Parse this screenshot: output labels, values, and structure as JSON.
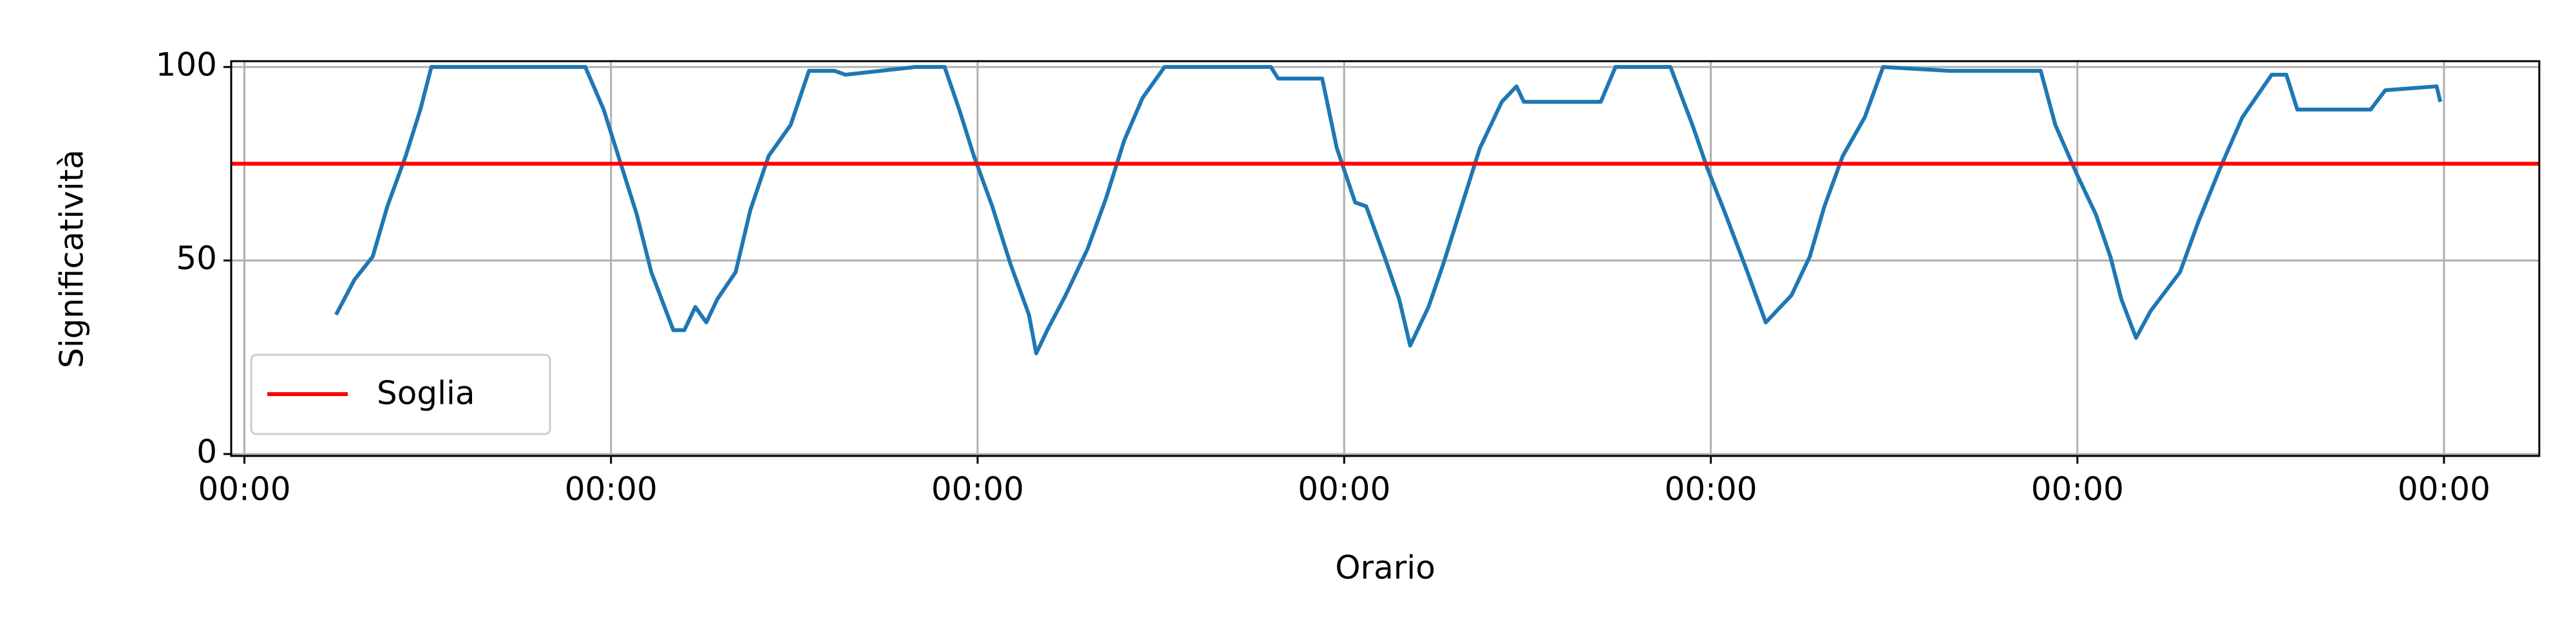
{
  "chart_data": {
    "type": "line",
    "xlabel": "Orario",
    "ylabel": "Significatività",
    "x": [
      0.25,
      0.3,
      0.35,
      0.39,
      0.44,
      0.48,
      0.51,
      0.93,
      0.98,
      1.02,
      1.07,
      1.11,
      1.17,
      1.2,
      1.23,
      1.26,
      1.29,
      1.34,
      1.38,
      1.43,
      1.49,
      1.54,
      1.61,
      1.64,
      1.83,
      1.91,
      1.95,
      1.99,
      2.04,
      2.09,
      2.14,
      2.16,
      2.19,
      2.24,
      2.3,
      2.35,
      2.4,
      2.45,
      2.51,
      2.8,
      2.82,
      2.94,
      2.98,
      3.03,
      3.06,
      3.11,
      3.15,
      3.18,
      3.23,
      3.27,
      3.32,
      3.37,
      3.43,
      3.47,
      3.49,
      3.7,
      3.74,
      3.89,
      3.95,
      3.99,
      4.04,
      4.1,
      4.15,
      4.22,
      4.27,
      4.31,
      4.36,
      4.42,
      4.47,
      4.65,
      4.9,
      4.94,
      5.0,
      5.05,
      5.09,
      5.12,
      5.16,
      5.2,
      5.28,
      5.33,
      5.39,
      5.45,
      5.53,
      5.57,
      5.6,
      5.8,
      5.84,
      5.98,
      5.99
    ],
    "series": [
      {
        "color": "#1f77b4",
        "values": [
          36,
          45,
          51,
          64,
          77,
          89,
          100,
          100,
          89,
          77,
          62,
          47,
          32,
          32,
          38,
          34,
          40,
          47,
          63,
          77,
          85,
          99,
          99,
          98,
          100,
          100,
          89,
          77,
          64,
          49,
          36,
          26,
          32,
          41,
          53,
          66,
          81,
          92,
          100,
          100,
          97,
          97,
          79,
          65,
          64,
          51,
          40,
          28,
          38,
          49,
          64,
          79,
          91,
          95,
          91,
          91,
          100,
          100,
          85,
          74,
          62,
          47,
          34,
          41,
          51,
          64,
          77,
          87,
          100,
          99,
          99,
          85,
          72,
          62,
          51,
          40,
          30,
          37,
          47,
          60,
          74,
          87,
          98,
          98,
          89,
          89,
          94,
          95,
          91
        ]
      }
    ],
    "threshold": {
      "name": "Soglia",
      "value": 75,
      "color": "#ff0000"
    },
    "xlim": [
      -0.036,
      6.26
    ],
    "xticks": [
      {
        "value": 0,
        "label": "00:00"
      },
      {
        "value": 1,
        "label": "00:00"
      },
      {
        "value": 2,
        "label": "00:00"
      },
      {
        "value": 3,
        "label": "00:00"
      },
      {
        "value": 4,
        "label": "00:00"
      },
      {
        "value": 5,
        "label": "00:00"
      },
      {
        "value": 6,
        "label": "00:00"
      }
    ],
    "ylim": [
      -0.5,
      101.5
    ],
    "yticks": [
      0,
      50,
      100
    ],
    "grid": true,
    "legend": "lower left"
  }
}
